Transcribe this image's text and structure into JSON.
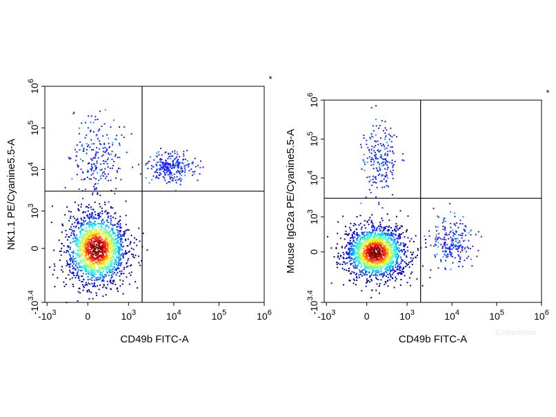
{
  "chart_data": [
    {
      "type": "scatter",
      "title": "",
      "xlabel": "CD49b FITC-A",
      "ylabel": "NK1.1 PE/Cyanine5.5-A",
      "x_scale": "biexponential",
      "y_scale": "biexponential",
      "x_ticks": [
        {
          "sup": "-10",
          "exp": "3"
        },
        {
          "sup": "0",
          "exp": ""
        },
        {
          "sup": "10",
          "exp": "3"
        },
        {
          "sup": "10",
          "exp": "4"
        },
        {
          "sup": "10",
          "exp": "5"
        },
        {
          "sup": "10",
          "exp": "6"
        }
      ],
      "y_ticks": [
        {
          "base": "-10",
          "exp": "3.4"
        },
        {
          "base": "0",
          "exp": ""
        },
        {
          "base": "10",
          "exp": "3"
        },
        {
          "base": "10",
          "exp": "4"
        },
        {
          "base": "10",
          "exp": "5"
        },
        {
          "base": "10",
          "exp": "6"
        }
      ],
      "gate": {
        "x": 2000,
        "y": 3000
      },
      "corner_mark": "*",
      "populations": [
        {
          "x": 200,
          "y": 0,
          "spread_x": 0.7,
          "spread_y": 0.9,
          "n": 1600,
          "dense": true
        },
        {
          "x": 8000,
          "y": 12000,
          "spread_x": 0.5,
          "spread_y": 0.35,
          "n": 260,
          "dense": false
        },
        {
          "x": 200,
          "y": 20000,
          "spread_x": 0.6,
          "spread_y": 1.0,
          "n": 220,
          "dense": false
        }
      ]
    },
    {
      "type": "scatter",
      "title": "",
      "xlabel": "CD49b FITC-A",
      "ylabel": "Mouse IgG2a PE/Cyanine5.5-A",
      "x_scale": "biexponential",
      "y_scale": "biexponential",
      "x_ticks": [
        {
          "sup": "-10",
          "exp": "3"
        },
        {
          "sup": "0",
          "exp": ""
        },
        {
          "sup": "10",
          "exp": "3"
        },
        {
          "sup": "10",
          "exp": "4"
        },
        {
          "sup": "10",
          "exp": "5"
        },
        {
          "sup": "10",
          "exp": "6"
        }
      ],
      "y_ticks": [
        {
          "base": "-10",
          "exp": "3.4"
        },
        {
          "base": "0",
          "exp": ""
        },
        {
          "base": "10",
          "exp": "3"
        },
        {
          "base": "10",
          "exp": "4"
        },
        {
          "base": "10",
          "exp": "5"
        },
        {
          "base": "10",
          "exp": "6"
        }
      ],
      "gate": {
        "x": 2000,
        "y": 3000
      },
      "corner_mark": "*",
      "populations": [
        {
          "x": 200,
          "y": 0,
          "spread_x": 0.7,
          "spread_y": 0.7,
          "n": 1600,
          "dense": true
        },
        {
          "x": 10000,
          "y": 300,
          "spread_x": 0.5,
          "spread_y": 0.6,
          "n": 220,
          "dense": false
        },
        {
          "x": 300,
          "y": 30000,
          "spread_x": 0.4,
          "spread_y": 1.0,
          "n": 200,
          "dense": false
        }
      ]
    }
  ],
  "watermark": "Elabscience"
}
